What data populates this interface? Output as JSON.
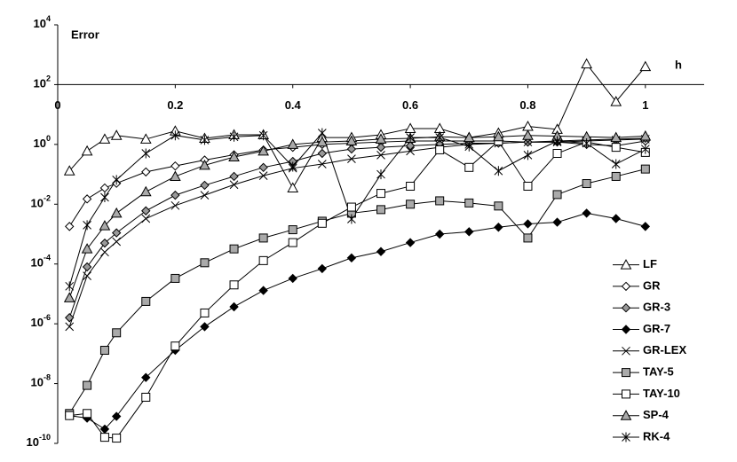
{
  "chart_data": {
    "type": "line",
    "y_label": "Error",
    "x_label": "h",
    "log_y": true,
    "xlim": [
      0,
      1.1
    ],
    "ylim": [
      1e-10,
      10000
    ],
    "xaxis_at": 100,
    "xticks": [
      0,
      0.2,
      0.4,
      0.6,
      0.8,
      1
    ],
    "yticks": [
      {
        "value": 10000,
        "label": "10^4"
      },
      {
        "value": 100,
        "label": "10^2"
      },
      {
        "value": 1,
        "label": "10^0"
      },
      {
        "value": 0.01,
        "label": "10^-2"
      },
      {
        "value": 0.0001,
        "label": "10^-4"
      },
      {
        "value": 1e-06,
        "label": "10^-6"
      },
      {
        "value": 1e-08,
        "label": "10^-8"
      },
      {
        "value": 1e-10,
        "label": "10^-10"
      }
    ],
    "legend": "bottom-right",
    "x": [
      0.02,
      0.05,
      0.08,
      0.1,
      0.15,
      0.2,
      0.25,
      0.3,
      0.35,
      0.4,
      0.45,
      0.5,
      0.55,
      0.6,
      0.65,
      0.7,
      0.75,
      0.8,
      0.85,
      0.9,
      0.95,
      1
    ],
    "series": [
      {
        "name": "LF",
        "marker": "triangle",
        "color": "#ffffff",
        "values": [
          0.13,
          0.6,
          1.5,
          2,
          1.5,
          2.8,
          1.6,
          2.1,
          2.1,
          0.035,
          1.7,
          1.7,
          2.1,
          3.4,
          3.4,
          1.7,
          2.4,
          4,
          3.2,
          490,
          27,
          400
        ]
      },
      {
        "name": "GR",
        "marker": "diamond",
        "color": "#ffffff",
        "values": [
          0.0018,
          0.015,
          0.035,
          0.05,
          0.12,
          0.19,
          0.3,
          0.45,
          0.65,
          0.8,
          1,
          1.1,
          1.2,
          1.3,
          1.3,
          1.3,
          1.3,
          1.2,
          1.2,
          1,
          0.9,
          1.3
        ]
      },
      {
        "name": "GR-3",
        "marker": "diamond",
        "color": "#999999",
        "values": [
          1.6e-06,
          8e-05,
          0.0005,
          0.0011,
          0.006,
          0.02,
          0.043,
          0.085,
          0.17,
          0.27,
          0.5,
          0.7,
          0.8,
          0.9,
          1,
          1.1,
          1.1,
          1.2,
          1.3,
          1.4,
          1.5,
          1.6
        ]
      },
      {
        "name": "GR-7",
        "marker": "diamond",
        "color": "#000000",
        "values": [
          8.5e-10,
          7e-10,
          3e-10,
          8e-10,
          1.6e-08,
          1.3e-07,
          8e-07,
          3.7e-06,
          1.3e-05,
          3.3e-05,
          7e-05,
          0.00016,
          0.00026,
          0.00052,
          0.001,
          0.0012,
          0.0017,
          0.0022,
          0.0025,
          0.005,
          0.0033,
          0.0018
        ]
      },
      {
        "name": "GR-LEX",
        "marker": "x",
        "color": "none",
        "values": [
          8e-07,
          4e-05,
          0.00025,
          0.00056,
          0.0033,
          0.009,
          0.02,
          0.045,
          0.09,
          0.16,
          0.22,
          0.33,
          0.44,
          0.6,
          0.8,
          1,
          1.1,
          1.2,
          1.2,
          1.3,
          1.4,
          1.5
        ]
      },
      {
        "name": "TAY-5",
        "marker": "square",
        "color": "#aaaaaa",
        "values": [
          1e-09,
          8.7e-09,
          1.3e-07,
          5e-07,
          5.6e-06,
          3.3e-05,
          0.00011,
          0.00032,
          0.00074,
          0.0014,
          0.0027,
          0.005,
          0.0066,
          0.01,
          0.013,
          0.011,
          0.0087,
          0.00074,
          0.021,
          0.049,
          0.085,
          0.15
        ]
      },
      {
        "name": "TAY-10",
        "marker": "square",
        "color": "#ffffff",
        "values": [
          8.5e-10,
          1e-09,
          1.6e-10,
          1.5e-10,
          3.5e-09,
          1.8e-07,
          2.3e-06,
          2e-05,
          0.00013,
          0.00052,
          0.0023,
          0.008,
          0.023,
          0.04,
          0.66,
          0.17,
          1.3,
          0.04,
          0.5,
          1.2,
          0.8,
          0.54
        ]
      },
      {
        "name": "SP-4",
        "marker": "triangle",
        "color": "#aaaaaa",
        "values": [
          7.4e-06,
          0.00032,
          0.0019,
          0.005,
          0.026,
          0.085,
          0.2,
          0.38,
          0.6,
          1,
          1.2,
          1.3,
          1.5,
          1.6,
          1.8,
          1.7,
          1.8,
          2,
          1.9,
          1.8,
          1.7,
          1.9
        ]
      },
      {
        "name": "RK-4",
        "marker": "asterisk",
        "color": "none",
        "values": [
          1.8e-05,
          0.002,
          0.017,
          0.065,
          0.5,
          2,
          1.4,
          1.8,
          2,
          0.18,
          2.4,
          0.0032,
          0.1,
          1.7,
          1.7,
          0.85,
          0.13,
          0.44,
          1.3,
          1.1,
          0.22,
          0.7
        ]
      }
    ]
  }
}
